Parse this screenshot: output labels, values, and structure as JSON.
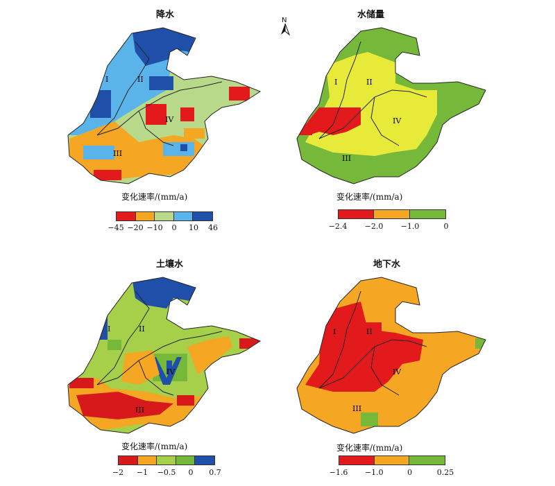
{
  "north_arrow": {
    "label": "N"
  },
  "region_labels": [
    "I",
    "II",
    "III",
    "IV"
  ],
  "panels": [
    {
      "title": "降水",
      "legend_title": "变化速率/(mm/a)",
      "legend_colors": [
        "#e31a1c",
        "#f5a623",
        "#b8d98a",
        "#5ab4ea",
        "#1f4fa8"
      ],
      "legend_ticks": [
        "−45",
        "−20",
        "−10",
        "0",
        "10",
        "46"
      ]
    },
    {
      "title": "水储量",
      "legend_title": "变化速率/(mm/a)",
      "legend_colors": [
        "#e31a1c",
        "#f5a623",
        "#76b83a"
      ],
      "legend_ticks": [
        "−2.4",
        "−2.0",
        "−1.0",
        "0"
      ]
    },
    {
      "title": "土壤水",
      "legend_title": "变化速率/(mm/a)",
      "legend_colors": [
        "#d7191c",
        "#f5a623",
        "#a6cf4a",
        "#76b83a",
        "#1f4fa8"
      ],
      "legend_ticks": [
        "−2",
        "−1",
        "−0.5",
        "0",
        "0.7"
      ]
    },
    {
      "title": "地下水",
      "legend_title": "变化速率/(mm/a)",
      "legend_colors": [
        "#e31a1c",
        "#f5a623",
        "#76b83a"
      ],
      "legend_ticks": [
        "−1.6",
        "−1.0",
        "0",
        "0.25"
      ]
    }
  ]
}
